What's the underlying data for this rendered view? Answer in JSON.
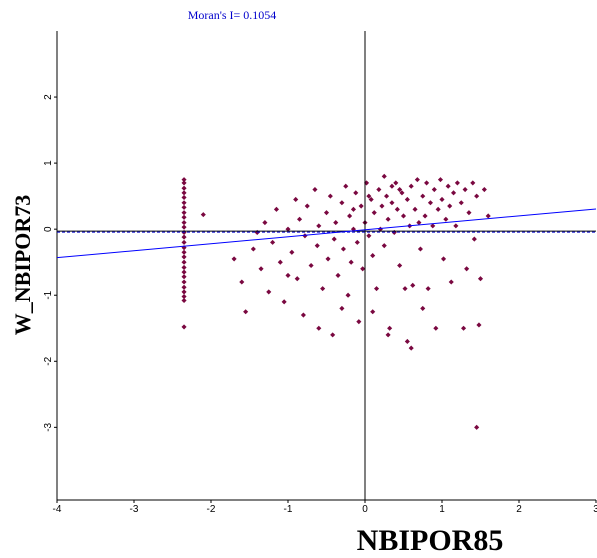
{
  "chart_data": {
    "type": "scatter",
    "title": "Moran's I= 0.1054",
    "x_label": "NBIPOR85",
    "y_label": "W_NBIPOR73",
    "color": "#7a0840",
    "xlim": [
      -4,
      3
    ],
    "ylim": [
      -4.1,
      3
    ],
    "xticks": [
      -4,
      -3,
      -2,
      -1,
      0,
      1,
      2,
      3
    ],
    "yticks": [
      -3,
      -2,
      -1,
      0,
      1,
      2
    ],
    "reference_x": 0,
    "reference_y": -0.03,
    "regression": {
      "slope": 0.1054,
      "intercept": -0.01
    },
    "x": [
      -2.35,
      -2.35,
      -2.35,
      -2.35,
      -2.35,
      -2.35,
      -2.35,
      -2.35,
      -2.35,
      -2.35,
      -2.35,
      -2.35,
      -2.35,
      -2.35,
      -2.35,
      -2.35,
      -2.35,
      -2.35,
      -2.35,
      -2.35,
      -2.35,
      -2.35,
      -2.35,
      -2.35,
      -2.35,
      -2.35,
      -2.35,
      -2.1,
      -1.7,
      -1.6,
      -1.55,
      -1.45,
      -1.4,
      -1.35,
      -1.3,
      -1.25,
      -1.2,
      -1.15,
      -1.1,
      -1.05,
      -1.0,
      -0.95,
      -0.9,
      -0.88,
      -0.85,
      -0.8,
      -0.78,
      -0.75,
      -0.7,
      -0.65,
      -0.62,
      -0.6,
      -0.55,
      -0.5,
      -0.48,
      -0.45,
      -0.42,
      -0.4,
      -0.38,
      -0.35,
      -0.3,
      -0.28,
      -0.25,
      -0.22,
      -0.2,
      -0.18,
      -0.15,
      -0.12,
      -0.1,
      -0.08,
      -0.05,
      -0.03,
      0.0,
      0.02,
      0.05,
      0.08,
      0.1,
      0.12,
      0.15,
      0.18,
      0.2,
      0.22,
      0.25,
      0.28,
      0.3,
      0.32,
      0.35,
      0.38,
      0.4,
      0.42,
      0.45,
      0.48,
      0.5,
      0.52,
      0.55,
      0.58,
      0.6,
      0.62,
      0.65,
      0.68,
      0.7,
      0.72,
      0.75,
      0.78,
      0.8,
      0.82,
      0.85,
      0.88,
      0.9,
      0.92,
      0.95,
      0.98,
      1.0,
      1.02,
      1.05,
      1.08,
      1.1,
      1.12,
      1.15,
      1.18,
      1.2,
      1.25,
      1.28,
      1.3,
      1.32,
      1.35,
      1.4,
      1.42,
      1.45,
      1.48,
      1.5,
      1.55,
      1.6,
      1.45,
      0.3,
      0.6,
      0.55,
      0.75,
      -0.3,
      -0.6,
      -1.0,
      0.1,
      0.45,
      0.25,
      0.05,
      -0.15,
      0.35
    ],
    "values": [
      0.75,
      0.7,
      0.62,
      0.55,
      0.48,
      0.4,
      0.33,
      0.25,
      0.18,
      0.1,
      0.03,
      -0.05,
      -0.12,
      -0.2,
      -0.28,
      -0.35,
      -0.42,
      -0.5,
      -0.58,
      -0.65,
      -0.72,
      -0.8,
      -0.88,
      -0.95,
      -1.02,
      -1.08,
      -1.48,
      0.22,
      -0.45,
      -0.8,
      -1.25,
      -0.3,
      -0.05,
      -0.6,
      0.1,
      -0.95,
      -0.2,
      0.3,
      -0.5,
      -1.1,
      0.0,
      -0.35,
      0.45,
      -0.75,
      0.15,
      -1.3,
      -0.1,
      0.35,
      -0.55,
      0.6,
      -0.25,
      0.05,
      -0.9,
      0.25,
      -0.45,
      0.5,
      -1.6,
      -0.15,
      0.1,
      -0.7,
      0.4,
      -0.3,
      0.65,
      -1.0,
      0.2,
      -0.5,
      0.0,
      0.55,
      -0.2,
      -1.4,
      0.35,
      -0.6,
      0.1,
      0.7,
      -0.1,
      0.45,
      -0.4,
      0.25,
      -0.9,
      0.6,
      0.0,
      0.35,
      -0.25,
      0.5,
      0.15,
      -1.5,
      0.4,
      -0.05,
      0.7,
      0.3,
      -0.55,
      0.55,
      0.2,
      -0.9,
      0.45,
      0.05,
      0.65,
      -0.85,
      0.3,
      0.75,
      0.1,
      -0.3,
      0.5,
      0.2,
      0.7,
      -0.9,
      0.4,
      0.05,
      0.6,
      -1.5,
      0.3,
      0.75,
      0.45,
      -0.45,
      0.15,
      0.65,
      0.35,
      -0.8,
      0.55,
      0.05,
      0.7,
      0.4,
      -1.5,
      0.6,
      -0.6,
      0.25,
      0.7,
      -0.15,
      0.5,
      -1.45,
      -0.75,
      0.6,
      0.2,
      -3.0,
      -1.6,
      -1.8,
      -1.7,
      -1.2,
      -1.2,
      -1.5,
      -0.7,
      -1.25,
      0.6,
      0.8,
      0.5,
      0.3,
      0.65
    ]
  }
}
